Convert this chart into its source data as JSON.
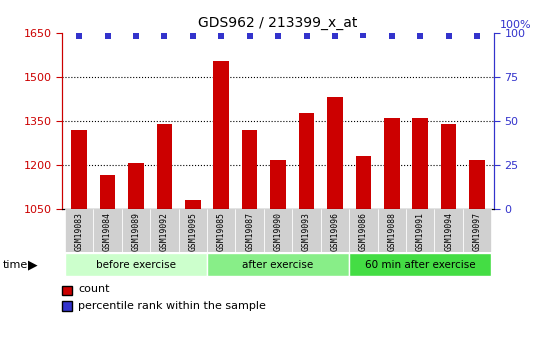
{
  "title": "GDS962 / 213399_x_at",
  "categories": [
    "GSM19083",
    "GSM19084",
    "GSM19089",
    "GSM19092",
    "GSM19095",
    "GSM19085",
    "GSM19087",
    "GSM19090",
    "GSM19093",
    "GSM19096",
    "GSM19086",
    "GSM19088",
    "GSM19091",
    "GSM19094",
    "GSM19097"
  ],
  "bar_values": [
    1320,
    1165,
    1205,
    1340,
    1080,
    1555,
    1320,
    1215,
    1375,
    1430,
    1230,
    1360,
    1360,
    1340,
    1215
  ],
  "percentile_values": [
    98,
    98,
    98,
    98,
    98,
    98,
    98,
    98,
    98,
    98,
    99,
    98,
    98,
    98,
    98
  ],
  "bar_color": "#cc0000",
  "percentile_color": "#3333cc",
  "ylim_left": [
    1050,
    1650
  ],
  "ylim_right": [
    0,
    100
  ],
  "yticks_left": [
    1050,
    1200,
    1350,
    1500,
    1650
  ],
  "yticks_right": [
    0,
    25,
    50,
    75,
    100
  ],
  "groups": [
    {
      "label": "before exercise",
      "start": 0,
      "end": 5,
      "color": "#ccffcc"
    },
    {
      "label": "after exercise",
      "start": 5,
      "end": 10,
      "color": "#88ee88"
    },
    {
      "label": "60 min after exercise",
      "start": 10,
      "end": 15,
      "color": "#44dd44"
    }
  ],
  "legend_count_label": "count",
  "legend_percentile_label": "percentile rank within the sample",
  "grid_ticks": [
    1200,
    1350,
    1500
  ],
  "bar_bottom": 1050,
  "xticklabel_bg": "#d0d0d0",
  "plot_bg_color": "#ffffff"
}
